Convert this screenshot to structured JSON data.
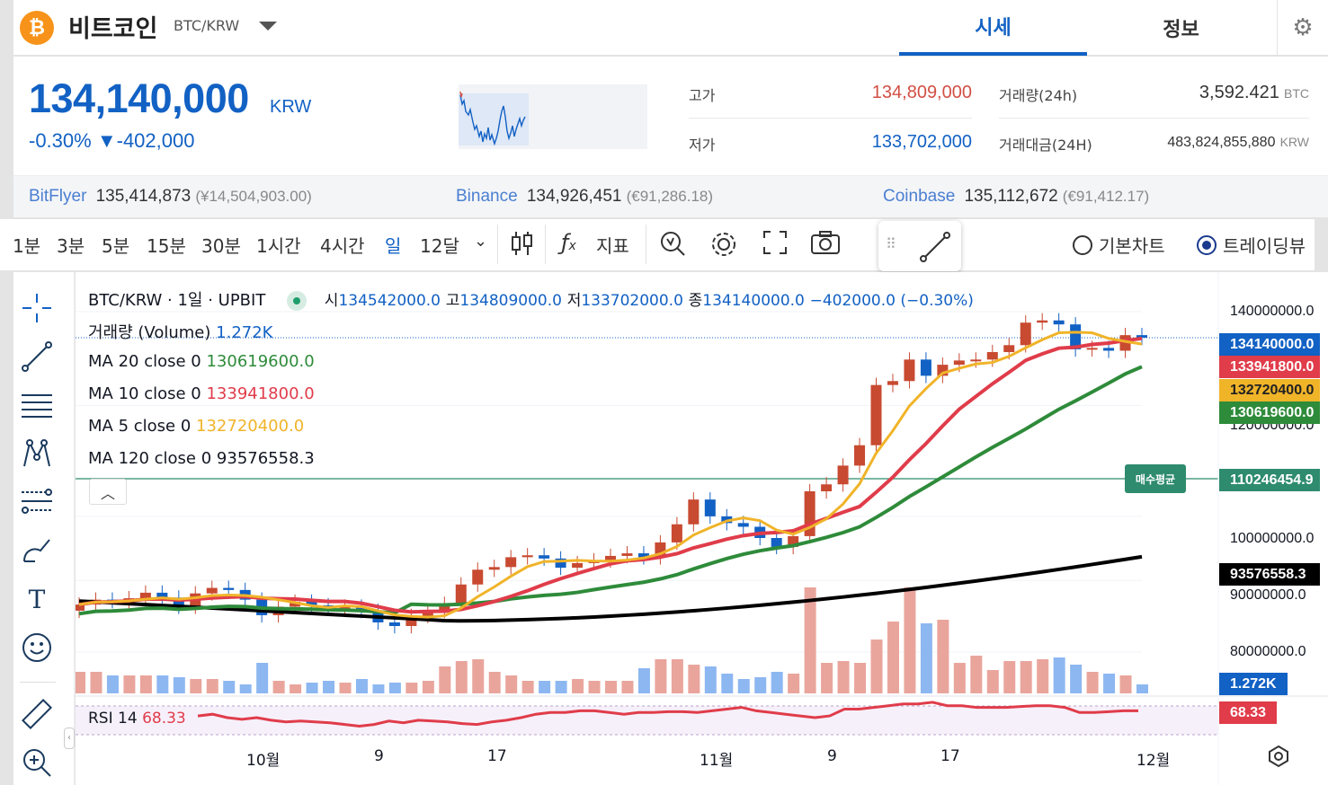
{
  "header": {
    "coin_icon": "bitcoin-icon",
    "coin_name": "비트코인",
    "pair": "BTC/KRW",
    "tabs": [
      {
        "label": "시세",
        "active": true
      },
      {
        "label": "정보",
        "active": false
      }
    ]
  },
  "price": {
    "current": "134,140,000",
    "unit": "KRW",
    "change_rate": "-0.30%",
    "change_arrow": "▼",
    "change_amount": "-402,000",
    "stats": [
      {
        "label": "고가",
        "value": "134,809,000",
        "color": "#d24f45"
      },
      {
        "label": "저가",
        "value": "133,702,000",
        "color": "#1261c4"
      },
      {
        "label": "거래량(24h)",
        "value": "3,592.421",
        "unit": "BTC"
      },
      {
        "label": "거래대금(24H)",
        "value": "483,824,855,880",
        "unit": "KRW"
      }
    ]
  },
  "exchanges": [
    {
      "name": "BitFlyer",
      "value": "135,414,873",
      "sub": "(¥14,504,903.00)"
    },
    {
      "name": "Binance",
      "value": "134,926,451",
      "sub": "(€91,286.18)"
    },
    {
      "name": "Coinbase",
      "value": "135,112,672",
      "sub": "(€91,412.17)"
    }
  ],
  "toolbar": {
    "timeframes": [
      "1분",
      "3분",
      "5분",
      "15분",
      "30분",
      "1시간",
      "4시간",
      "일",
      "12달"
    ],
    "active_timeframe": "일",
    "indicator_label": "지표",
    "indicator_icon": "fx-icon",
    "chart_modes": [
      {
        "label": "기본차트",
        "selected": false
      },
      {
        "label": "트레이딩뷰",
        "selected": true
      }
    ]
  },
  "chart": {
    "title": "BTC/KRW · 1일 · UPBIT",
    "ohlc": {
      "open_label": "시",
      "open": "134542000.0",
      "high_label": "고",
      "high": "134809000.0",
      "low_label": "저",
      "low": "133702000.0",
      "close_label": "종",
      "close": "134140000.0",
      "change": "−402000.0 (−0.30%)"
    },
    "volume_label": "거래량 (Volume)",
    "volume_value": "1.272K",
    "ma": [
      {
        "label": "MA 20 close 0",
        "value": "130619600.0",
        "color": "#2e8b3a"
      },
      {
        "label": "MA 10 close 0",
        "value": "133941800.0",
        "color": "#e03c4a"
      },
      {
        "label": "MA 5 close 0",
        "value": "132720400.0",
        "color": "#f0b429"
      },
      {
        "label": "MA 120 close 0",
        "value": "93576558.3",
        "color": "#000000"
      }
    ],
    "avg_buy_label": "매수평균",
    "avg_buy_value": "110246454.9",
    "rsi_label": "RSI 14",
    "rsi_value": "68.33",
    "y_ticks": [
      "140000000.0",
      "120000000.0",
      "100000000.0",
      "90000000.0",
      "80000000.0"
    ],
    "x_ticks": [
      "10월",
      "9",
      "17",
      "11월",
      "9",
      "17",
      "12월"
    ],
    "badges": {
      "last": "134140000.0",
      "ma10": "133941800.0",
      "ma5": "132720400.0",
      "ma20": "130619600.0",
      "ma120": "93576558.3",
      "volume": "1.272K",
      "rsi": "68.33"
    }
  },
  "chart_data": {
    "type": "candlestick",
    "y_range": [
      72000000,
      146000000
    ],
    "y_scale": "log",
    "last_close": 134140000,
    "avg_buy": 110246454.9,
    "candles_close": [
      86500000,
      87200000,
      87000000,
      87400000,
      88200000,
      87500000,
      86200000,
      88100000,
      88900000,
      88600000,
      87200000,
      85000000,
      86200000,
      86900000,
      86400000,
      85900000,
      86200000,
      85600000,
      84000000,
      83500000,
      84900000,
      85600000,
      86600000,
      89400000,
      91600000,
      92000000,
      93500000,
      93800000,
      93300000,
      91900000,
      92600000,
      93000000,
      93700000,
      94100000,
      93500000,
      95800000,
      98700000,
      102800000,
      100000000,
      98900000,
      98300000,
      96500000,
      95100000,
      96800000,
      104200000,
      105400000,
      108700000,
      112400000,
      124100000,
      124900000,
      129400000,
      126000000,
      128300000,
      129200000,
      129400000,
      131000000,
      132500000,
      137500000,
      138000000,
      137100000,
      131600000,
      131900000,
      131300000,
      134700000,
      134140000
    ],
    "ma_series": {
      "ma5": "follows closes with 5-day lag",
      "ma10": "follows closes with 10-day lag",
      "ma20": "follows closes with 20-day lag",
      "ma120": "slow upward curve"
    },
    "volume_last": "1.272K",
    "rsi_last": 68.33
  }
}
